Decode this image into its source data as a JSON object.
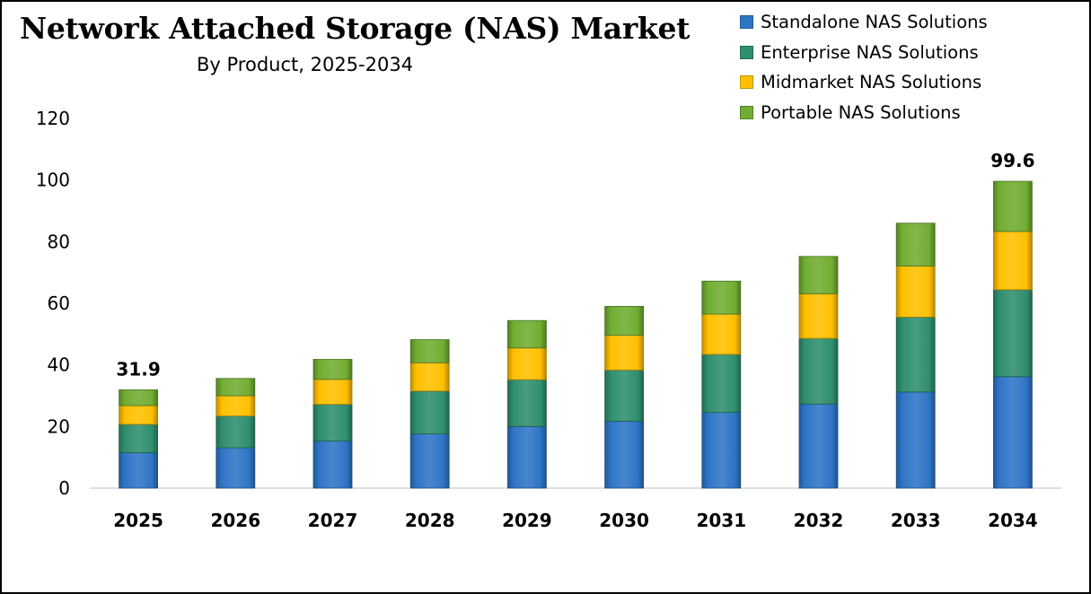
{
  "chart_data": {
    "type": "bar",
    "stacked": true,
    "title": "Network Attached Storage (NAS) Market",
    "subtitle": "By Product, 2025-2034",
    "xlabel": "",
    "ylabel": "",
    "ylim": [
      0,
      120
    ],
    "yticks": [
      0,
      20,
      40,
      60,
      80,
      100,
      120
    ],
    "grid": false,
    "legend_position": "top-right",
    "categories": [
      "2025",
      "2026",
      "2027",
      "2028",
      "2029",
      "2030",
      "2031",
      "2032",
      "2033",
      "2034"
    ],
    "series": [
      {
        "name": "Standalone NAS Solutions",
        "color": "#2e75c6",
        "values": [
          11.5,
          13.1,
          15.3,
          17.6,
          20.0,
          21.7,
          24.6,
          27.3,
          31.2,
          36.2
        ]
      },
      {
        "name": "Enterprise NAS Solutions",
        "color": "#2f8f6e",
        "values": [
          9.2,
          10.3,
          11.9,
          13.9,
          15.2,
          16.6,
          18.8,
          21.3,
          24.3,
          28.2
        ]
      },
      {
        "name": "Midmarket NAS Solutions",
        "color": "#ffc000",
        "values": [
          6.1,
          6.6,
          8.1,
          9.2,
          10.3,
          11.3,
          13.1,
          14.5,
          16.6,
          18.9
        ]
      },
      {
        "name": "Portable NAS Solutions",
        "color": "#71ad32",
        "values": [
          5.1,
          5.6,
          6.5,
          7.5,
          8.9,
          9.4,
          10.7,
          12.1,
          13.9,
          16.3
        ]
      }
    ],
    "data_labels": [
      {
        "category": "2025",
        "text": "31.9"
      },
      {
        "category": "2034",
        "text": "99.6"
      }
    ]
  }
}
